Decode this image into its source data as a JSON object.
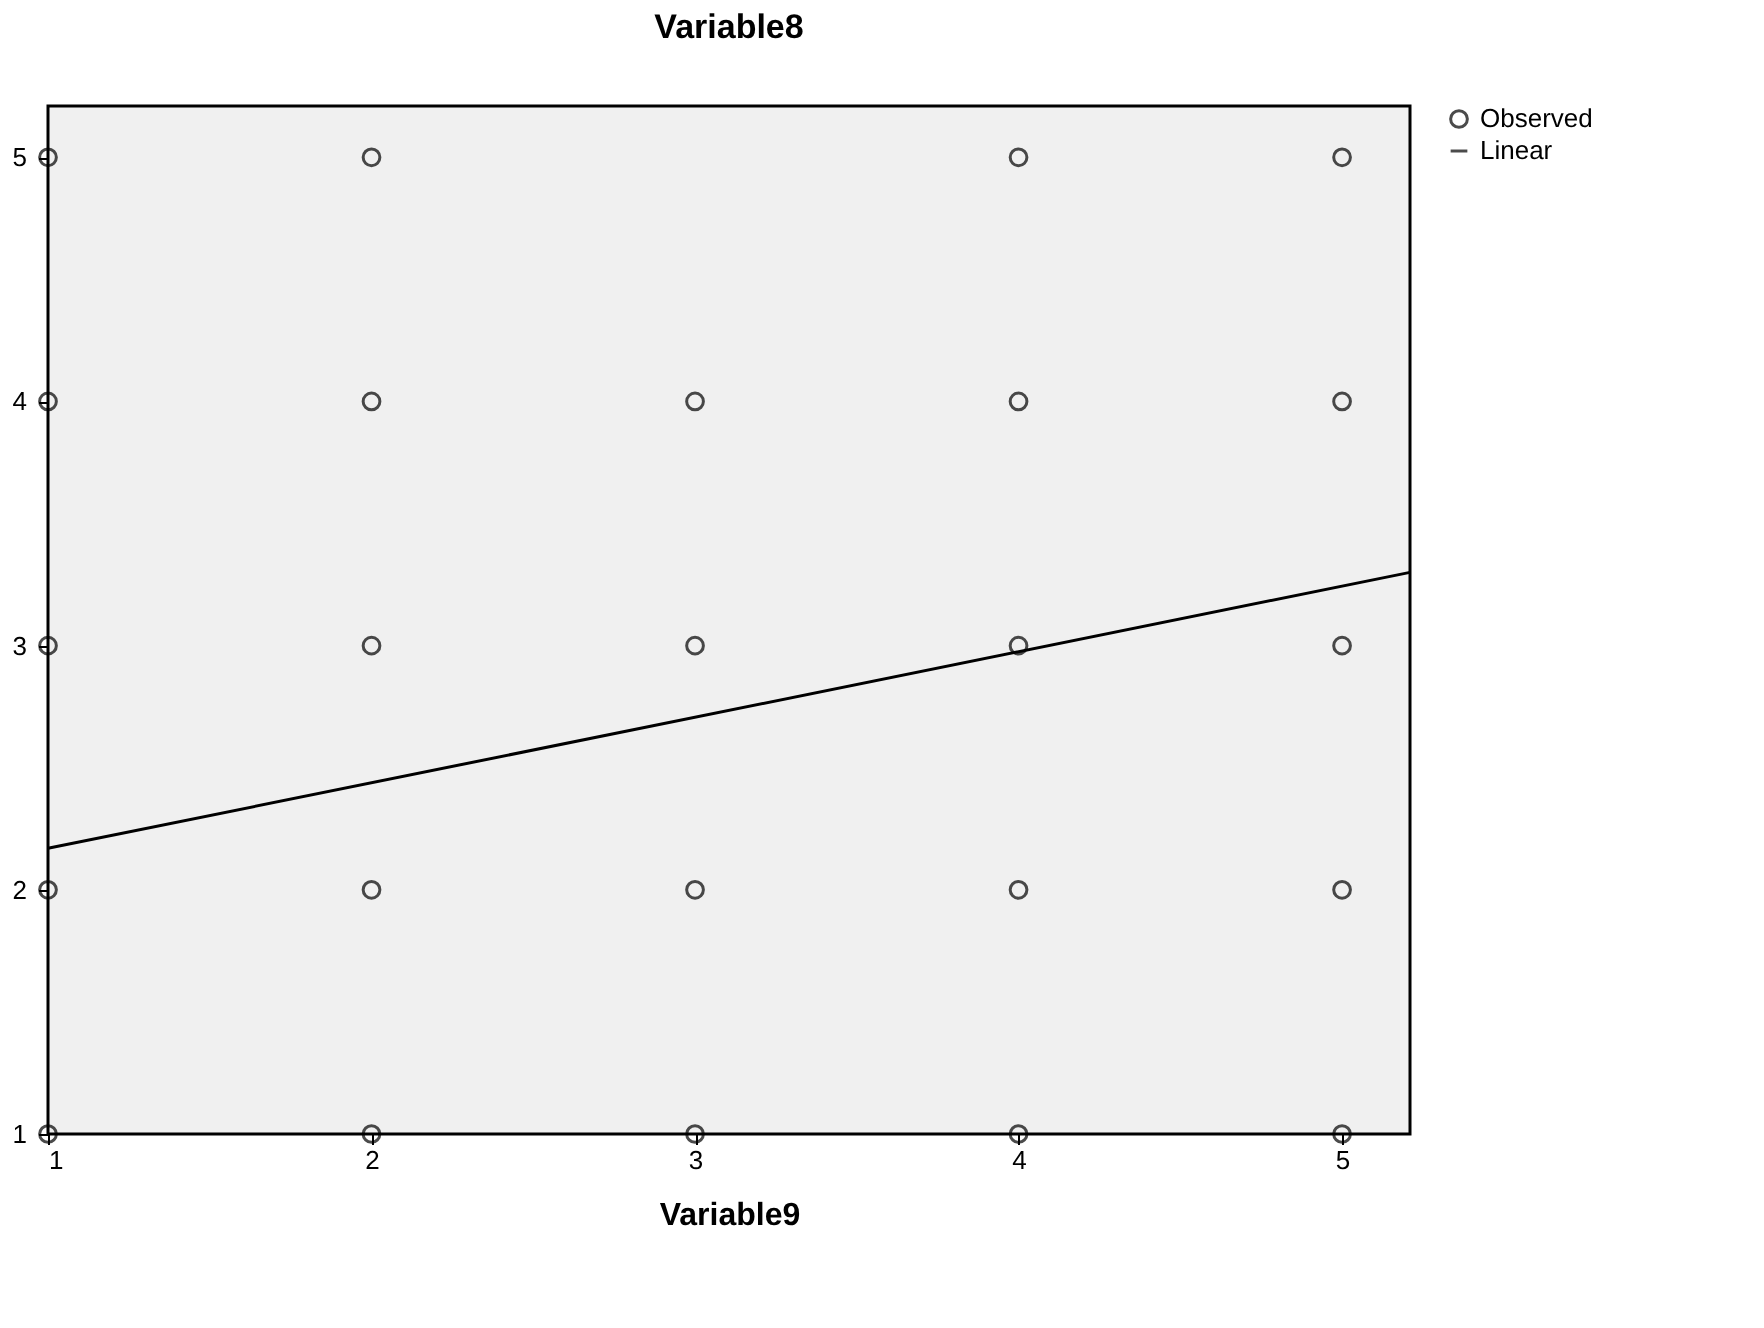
{
  "chart_data": {
    "type": "scatter",
    "title": "Variable8",
    "xlabel": "Variable9",
    "xlim": [
      1,
      5.21
    ],
    "xticks": [
      1,
      2,
      3,
      4,
      5
    ],
    "ylim": [
      1,
      5.21
    ],
    "yticks": [
      1,
      2,
      3,
      4,
      5
    ],
    "grid": false,
    "legend": "top right",
    "series": [
      {
        "name": "Observed",
        "marker": "circle",
        "color": "#000000",
        "x": [
          1,
          1,
          1,
          1,
          1,
          2,
          2,
          2,
          2,
          2,
          3,
          3,
          3,
          3,
          4,
          4,
          4,
          4,
          4,
          5,
          5,
          5,
          5,
          5
        ],
        "values": [
          1,
          2,
          3,
          4,
          5,
          1,
          2,
          3,
          4,
          5,
          1,
          2,
          3,
          4,
          1,
          2,
          3,
          4,
          5,
          1,
          2,
          3,
          4,
          5
        ]
      },
      {
        "name": "Linear",
        "type": "line",
        "color": "#000000",
        "line_style": "solid",
        "x": [
          1,
          5.21
        ],
        "values": [
          2.17,
          3.3
        ]
      }
    ]
  }
}
